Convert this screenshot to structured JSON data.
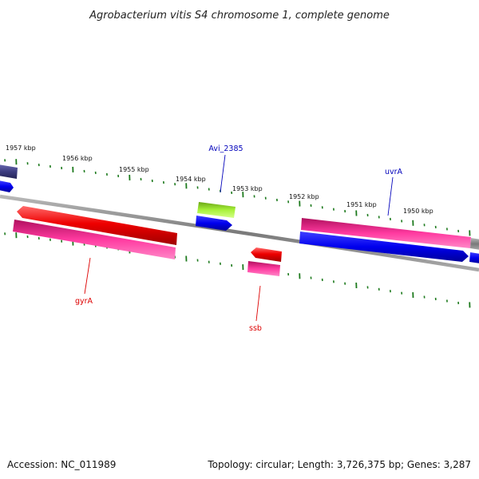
{
  "title": "Agrobacterium vitis S4 chromosome 1, complete genome",
  "footer": {
    "accession": "Accession: NC_011989",
    "summary": "Topology: circular; Length: 3,726,375 bp; Genes: 3,287"
  },
  "colors": {
    "backbone": "#8a8a8a",
    "tick": "#1d7a1d",
    "forward_cds": "#0000ee",
    "reverse_cds": "#ee0000",
    "pink_gene": "#ee1188",
    "green_gene": "#99ee22",
    "slate_gene": "#3c3c80",
    "label_blue": "#0000bb",
    "label_red": "#dd0000"
  },
  "ticks": [
    {
      "label": "1957 kbp"
    },
    {
      "label": "1956 kbp"
    },
    {
      "label": "1955 kbp"
    },
    {
      "label": "1954 kbp"
    },
    {
      "label": "1953 kbp"
    },
    {
      "label": "1952 kbp"
    },
    {
      "label": "1951 kbp"
    },
    {
      "label": "1950 kbp"
    }
  ],
  "genes": [
    {
      "name": "Avi_2385",
      "label_color": "blue"
    },
    {
      "name": "uvrA",
      "label_color": "blue"
    },
    {
      "name": "gyrA",
      "label_color": "red"
    },
    {
      "name": "ssb",
      "label_color": "red"
    }
  ]
}
